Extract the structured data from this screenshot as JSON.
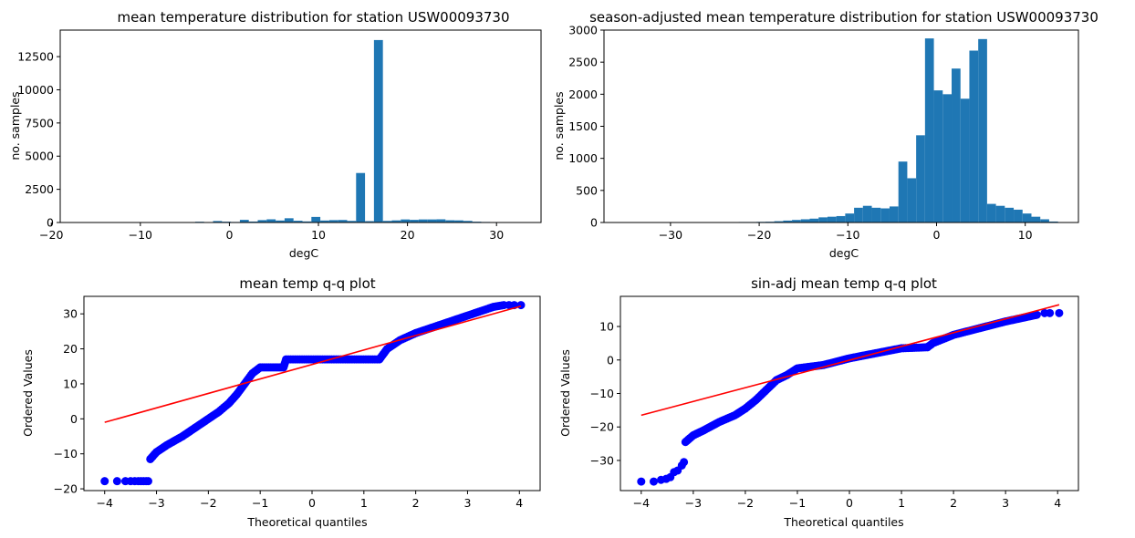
{
  "chart_data": [
    {
      "type": "bar",
      "title": "mean temperature distribution for station USW00093730",
      "xlabel": "degC",
      "ylabel": "no. samples",
      "xlim": [
        -19,
        35
      ],
      "ylim": [
        0,
        14500
      ],
      "xticks": [
        -20,
        -10,
        0,
        10,
        20,
        30
      ],
      "yticks": [
        0,
        2500,
        5000,
        7500,
        10000,
        12500
      ],
      "bar_color": "#1f77b4",
      "bin_edges_start": -17.9,
      "bin_width": 1.004,
      "values": [
        4,
        3,
        3,
        3,
        3,
        4,
        4,
        5,
        6,
        8,
        10,
        12,
        14,
        20,
        55,
        30,
        110,
        60,
        40,
        200,
        70,
        180,
        240,
        150,
        320,
        130,
        80,
        420,
        150,
        180,
        190,
        120,
        3730,
        100,
        13750,
        120,
        160,
        230,
        200,
        230,
        230,
        240,
        170,
        160,
        120,
        60,
        40,
        20,
        8,
        3,
        2
      ]
    },
    {
      "type": "bar",
      "title": "season-adjusted mean temperature distribution for station USW00093730",
      "xlabel": "degC",
      "ylabel": "no. samples",
      "xlim": [
        -37.5,
        16
      ],
      "ylim": [
        0,
        3000
      ],
      "xticks": [
        -30,
        -20,
        -10,
        0,
        10
      ],
      "yticks": [
        0,
        500,
        1000,
        1500,
        2000,
        2500,
        3000
      ],
      "bar_color": "#1f77b4",
      "bin_edges_start": -36.3,
      "bin_width": 1.0,
      "values": [
        1,
        1,
        1,
        1,
        1,
        1,
        1,
        2,
        2,
        2,
        2,
        2,
        2,
        5,
        8,
        8,
        10,
        12,
        20,
        30,
        40,
        50,
        60,
        80,
        90,
        100,
        140,
        230,
        260,
        230,
        220,
        250,
        950,
        690,
        1360,
        2870,
        2060,
        2000,
        2400,
        1930,
        2680,
        2860,
        290,
        260,
        230,
        200,
        140,
        90,
        50,
        15
      ]
    },
    {
      "type": "scatter",
      "title": "mean temp q-q plot",
      "xlabel": "Theoretical quantiles",
      "ylabel": "Ordered Values",
      "xlim": [
        -4.4,
        4.4
      ],
      "ylim": [
        -20.5,
        35
      ],
      "xticks": [
        -4,
        -3,
        -2,
        -1,
        0,
        1,
        2,
        3,
        4
      ],
      "yticks": [
        -20,
        -10,
        0,
        10,
        20,
        30
      ],
      "point_color": "#0000ff",
      "line_color": "#ff0000",
      "fit_line": {
        "x": [
          -4,
          4.03
        ],
        "y": [
          -1,
          32.2
        ]
      },
      "curve": [
        [
          -3.12,
          -11.5
        ],
        [
          -3.0,
          -9.5
        ],
        [
          -2.8,
          -7.5
        ],
        [
          -2.5,
          -5
        ],
        [
          -2.2,
          -2
        ],
        [
          -2.0,
          0
        ],
        [
          -1.8,
          2
        ],
        [
          -1.6,
          4.5
        ],
        [
          -1.45,
          7
        ],
        [
          -1.3,
          10
        ],
        [
          -1.15,
          13
        ],
        [
          -1.0,
          14.7
        ],
        [
          -0.55,
          14.7
        ],
        [
          -0.5,
          17
        ],
        [
          1.3,
          17
        ],
        [
          1.45,
          20
        ],
        [
          1.7,
          22.5
        ],
        [
          2.0,
          24.5
        ],
        [
          2.3,
          26
        ],
        [
          2.6,
          27.5
        ],
        [
          2.9,
          29
        ],
        [
          3.1,
          30
        ],
        [
          3.3,
          31
        ],
        [
          3.5,
          32
        ],
        [
          3.7,
          32.5
        ]
      ],
      "outliers": [
        [
          -4.0,
          -17.8
        ],
        [
          -3.76,
          -17.8
        ],
        [
          -3.6,
          -17.8
        ],
        [
          -3.5,
          -17.8
        ],
        [
          -3.42,
          -17.8
        ],
        [
          -3.35,
          -17.8
        ],
        [
          -3.3,
          -17.8
        ],
        [
          -3.25,
          -17.8
        ],
        [
          -3.2,
          -17.8
        ],
        [
          -3.16,
          -17.8
        ],
        [
          3.8,
          32.5
        ],
        [
          3.9,
          32.5
        ],
        [
          4.03,
          32.5
        ]
      ]
    },
    {
      "type": "scatter",
      "title": "sin-adj mean temp q-q plot",
      "xlabel": "Theoretical quantiles",
      "ylabel": "Ordered Values",
      "xlim": [
        -4.4,
        4.4
      ],
      "ylim": [
        -39,
        19
      ],
      "xticks": [
        -4,
        -3,
        -2,
        -1,
        0,
        1,
        2,
        3,
        4
      ],
      "yticks": [
        -30,
        -20,
        -10,
        0,
        10
      ],
      "point_color": "#0000ff",
      "line_color": "#ff0000",
      "fit_line": {
        "x": [
          -4,
          4.03
        ],
        "y": [
          -16.5,
          16.5
        ]
      },
      "curve": [
        [
          -3.15,
          -24.5
        ],
        [
          -3.0,
          -22.5
        ],
        [
          -2.8,
          -21
        ],
        [
          -2.5,
          -18.5
        ],
        [
          -2.2,
          -16.5
        ],
        [
          -2.0,
          -14.5
        ],
        [
          -1.8,
          -12
        ],
        [
          -1.6,
          -9
        ],
        [
          -1.4,
          -6
        ],
        [
          -1.2,
          -4.5
        ],
        [
          -1.0,
          -2.5
        ],
        [
          -0.5,
          -1.5
        ],
        [
          0.0,
          0.5
        ],
        [
          0.5,
          2
        ],
        [
          1.0,
          3.5
        ],
        [
          1.5,
          3.8
        ],
        [
          1.6,
          5
        ],
        [
          2.0,
          7.5
        ],
        [
          2.5,
          9.5
        ],
        [
          3.0,
          11.5
        ],
        [
          3.3,
          12.5
        ],
        [
          3.6,
          13.5
        ]
      ],
      "outliers": [
        [
          -4.0,
          -36.3
        ],
        [
          -3.76,
          -36.3
        ],
        [
          -3.62,
          -35.8
        ],
        [
          -3.52,
          -35.5
        ],
        [
          -3.44,
          -35
        ],
        [
          -3.37,
          -33.5
        ],
        [
          -3.3,
          -33
        ],
        [
          -3.22,
          -31.5
        ],
        [
          -3.18,
          -30.5
        ],
        [
          3.75,
          14
        ],
        [
          3.85,
          14
        ],
        [
          4.03,
          14
        ]
      ]
    }
  ]
}
